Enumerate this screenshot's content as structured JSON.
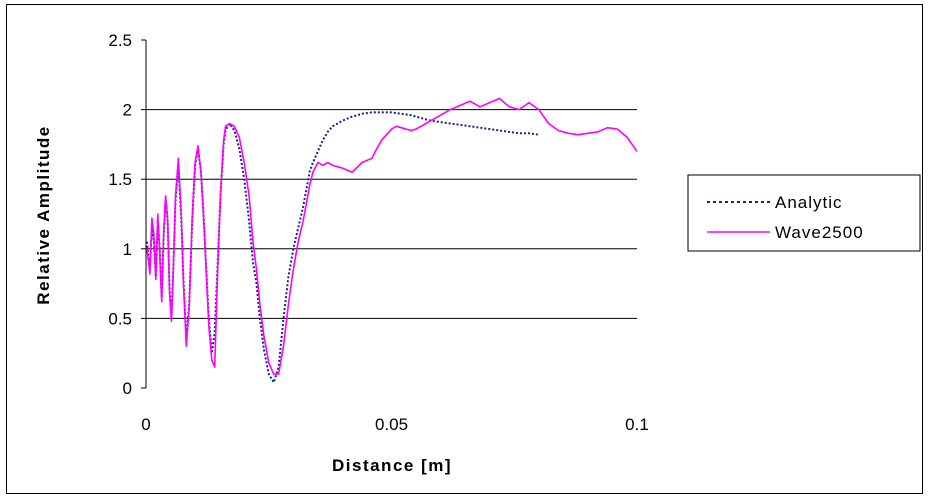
{
  "chart_data": {
    "type": "line",
    "title": "",
    "xlabel": "Distance [m]",
    "ylabel": "Relative Amplitude",
    "xlim": [
      0,
      0.1
    ],
    "ylim": [
      0,
      2.5
    ],
    "x_ticks": [
      "0",
      "0.05",
      "0.1"
    ],
    "x_tick_values": [
      0,
      0.05,
      0.1
    ],
    "y_ticks": [
      "0",
      "0.5",
      "1",
      "1.5",
      "2",
      "2.5"
    ],
    "y_tick_values": [
      0,
      0.5,
      1,
      1.5,
      2,
      2.5
    ],
    "grid": "horizontal",
    "legend_position": "right",
    "series": [
      {
        "name": "Analytic",
        "color": "#1a237e",
        "dash": "dotted",
        "x": [
          0.0002,
          0.0008,
          0.0012,
          0.0016,
          0.002,
          0.0024,
          0.0028,
          0.0032,
          0.0036,
          0.004,
          0.0044,
          0.0048,
          0.0052,
          0.0056,
          0.006,
          0.0066,
          0.0072,
          0.0076,
          0.0082,
          0.0088,
          0.0094,
          0.01,
          0.0106,
          0.0112,
          0.0118,
          0.0122,
          0.0128,
          0.0134,
          0.014,
          0.0146,
          0.0152,
          0.0158,
          0.0162,
          0.017,
          0.018,
          0.019,
          0.02,
          0.021,
          0.0218,
          0.0225,
          0.0232,
          0.024,
          0.025,
          0.026,
          0.027,
          0.028,
          0.029,
          0.03,
          0.031,
          0.032,
          0.0328,
          0.0333,
          0.034,
          0.035,
          0.036,
          0.037,
          0.038,
          0.04,
          0.042,
          0.044,
          0.046,
          0.048,
          0.05,
          0.052,
          0.054,
          0.056,
          0.058,
          0.06,
          0.062,
          0.064,
          0.066,
          0.068,
          0.07,
          0.072,
          0.074,
          0.076,
          0.078,
          0.08
        ],
        "y": [
          1.05,
          0.85,
          1.15,
          1.05,
          0.8,
          1.2,
          1.0,
          0.65,
          1.1,
          1.35,
          1.2,
          0.7,
          0.5,
          0.9,
          1.35,
          1.6,
          1.2,
          0.8,
          0.35,
          0.6,
          1.2,
          1.6,
          1.72,
          1.55,
          1.2,
          0.9,
          0.5,
          0.25,
          0.4,
          0.9,
          1.4,
          1.75,
          1.85,
          1.9,
          1.85,
          1.72,
          1.5,
          1.2,
          0.9,
          0.75,
          0.5,
          0.28,
          0.1,
          0.04,
          0.15,
          0.5,
          0.8,
          1.0,
          1.15,
          1.3,
          1.45,
          1.55,
          1.62,
          1.7,
          1.78,
          1.84,
          1.88,
          1.92,
          1.95,
          1.97,
          1.98,
          1.98,
          1.98,
          1.97,
          1.96,
          1.94,
          1.92,
          1.91,
          1.9,
          1.89,
          1.88,
          1.87,
          1.86,
          1.85,
          1.84,
          1.83,
          1.83,
          1.82
        ],
        "values_note_removed": true
      },
      {
        "name": "Wave2500",
        "color": "#ff00ff",
        "dash": "solid",
        "x": [
          0.0002,
          0.0008,
          0.0012,
          0.0016,
          0.002,
          0.0024,
          0.0028,
          0.0032,
          0.0036,
          0.004,
          0.0044,
          0.0048,
          0.0052,
          0.0056,
          0.006,
          0.0066,
          0.0072,
          0.0076,
          0.0082,
          0.0088,
          0.0094,
          0.01,
          0.0106,
          0.0112,
          0.0118,
          0.0122,
          0.0128,
          0.0134,
          0.014,
          0.0146,
          0.0152,
          0.0158,
          0.0162,
          0.017,
          0.018,
          0.019,
          0.02,
          0.021,
          0.0218,
          0.0225,
          0.0232,
          0.024,
          0.025,
          0.026,
          0.027,
          0.028,
          0.029,
          0.03,
          0.031,
          0.032,
          0.0328,
          0.0333,
          0.034,
          0.035,
          0.036,
          0.037,
          0.038,
          0.04,
          0.042,
          0.044,
          0.046,
          0.047,
          0.048,
          0.049,
          0.05,
          0.051,
          0.052,
          0.053,
          0.054,
          0.055,
          0.056,
          0.057,
          0.058,
          0.06,
          0.062,
          0.064,
          0.066,
          0.068,
          0.07,
          0.072,
          0.074,
          0.076,
          0.078,
          0.08,
          0.082,
          0.084,
          0.086,
          0.088,
          0.09,
          0.092,
          0.094,
          0.096,
          0.098,
          0.1
        ],
        "y": [
          1.0,
          0.82,
          1.22,
          1.1,
          0.78,
          1.25,
          0.98,
          0.62,
          1.12,
          1.38,
          1.22,
          0.68,
          0.48,
          0.88,
          1.38,
          1.65,
          1.22,
          0.78,
          0.3,
          0.58,
          1.22,
          1.62,
          1.74,
          1.55,
          1.18,
          0.88,
          0.45,
          0.2,
          0.15,
          0.85,
          1.4,
          1.78,
          1.88,
          1.9,
          1.88,
          1.8,
          1.62,
          1.38,
          1.05,
          0.85,
          0.6,
          0.38,
          0.18,
          0.1,
          0.1,
          0.3,
          0.6,
          0.85,
          1.05,
          1.2,
          1.35,
          1.45,
          1.55,
          1.62,
          1.6,
          1.62,
          1.6,
          1.58,
          1.55,
          1.62,
          1.65,
          1.72,
          1.78,
          1.82,
          1.86,
          1.88,
          1.87,
          1.86,
          1.85,
          1.86,
          1.88,
          1.9,
          1.92,
          1.96,
          2.0,
          2.03,
          2.06,
          2.02,
          2.05,
          2.08,
          2.02,
          2.0,
          2.05,
          2.0,
          1.9,
          1.85,
          1.83,
          1.82,
          1.83,
          1.84,
          1.87,
          1.86,
          1.8,
          1.7
        ]
      }
    ]
  }
}
